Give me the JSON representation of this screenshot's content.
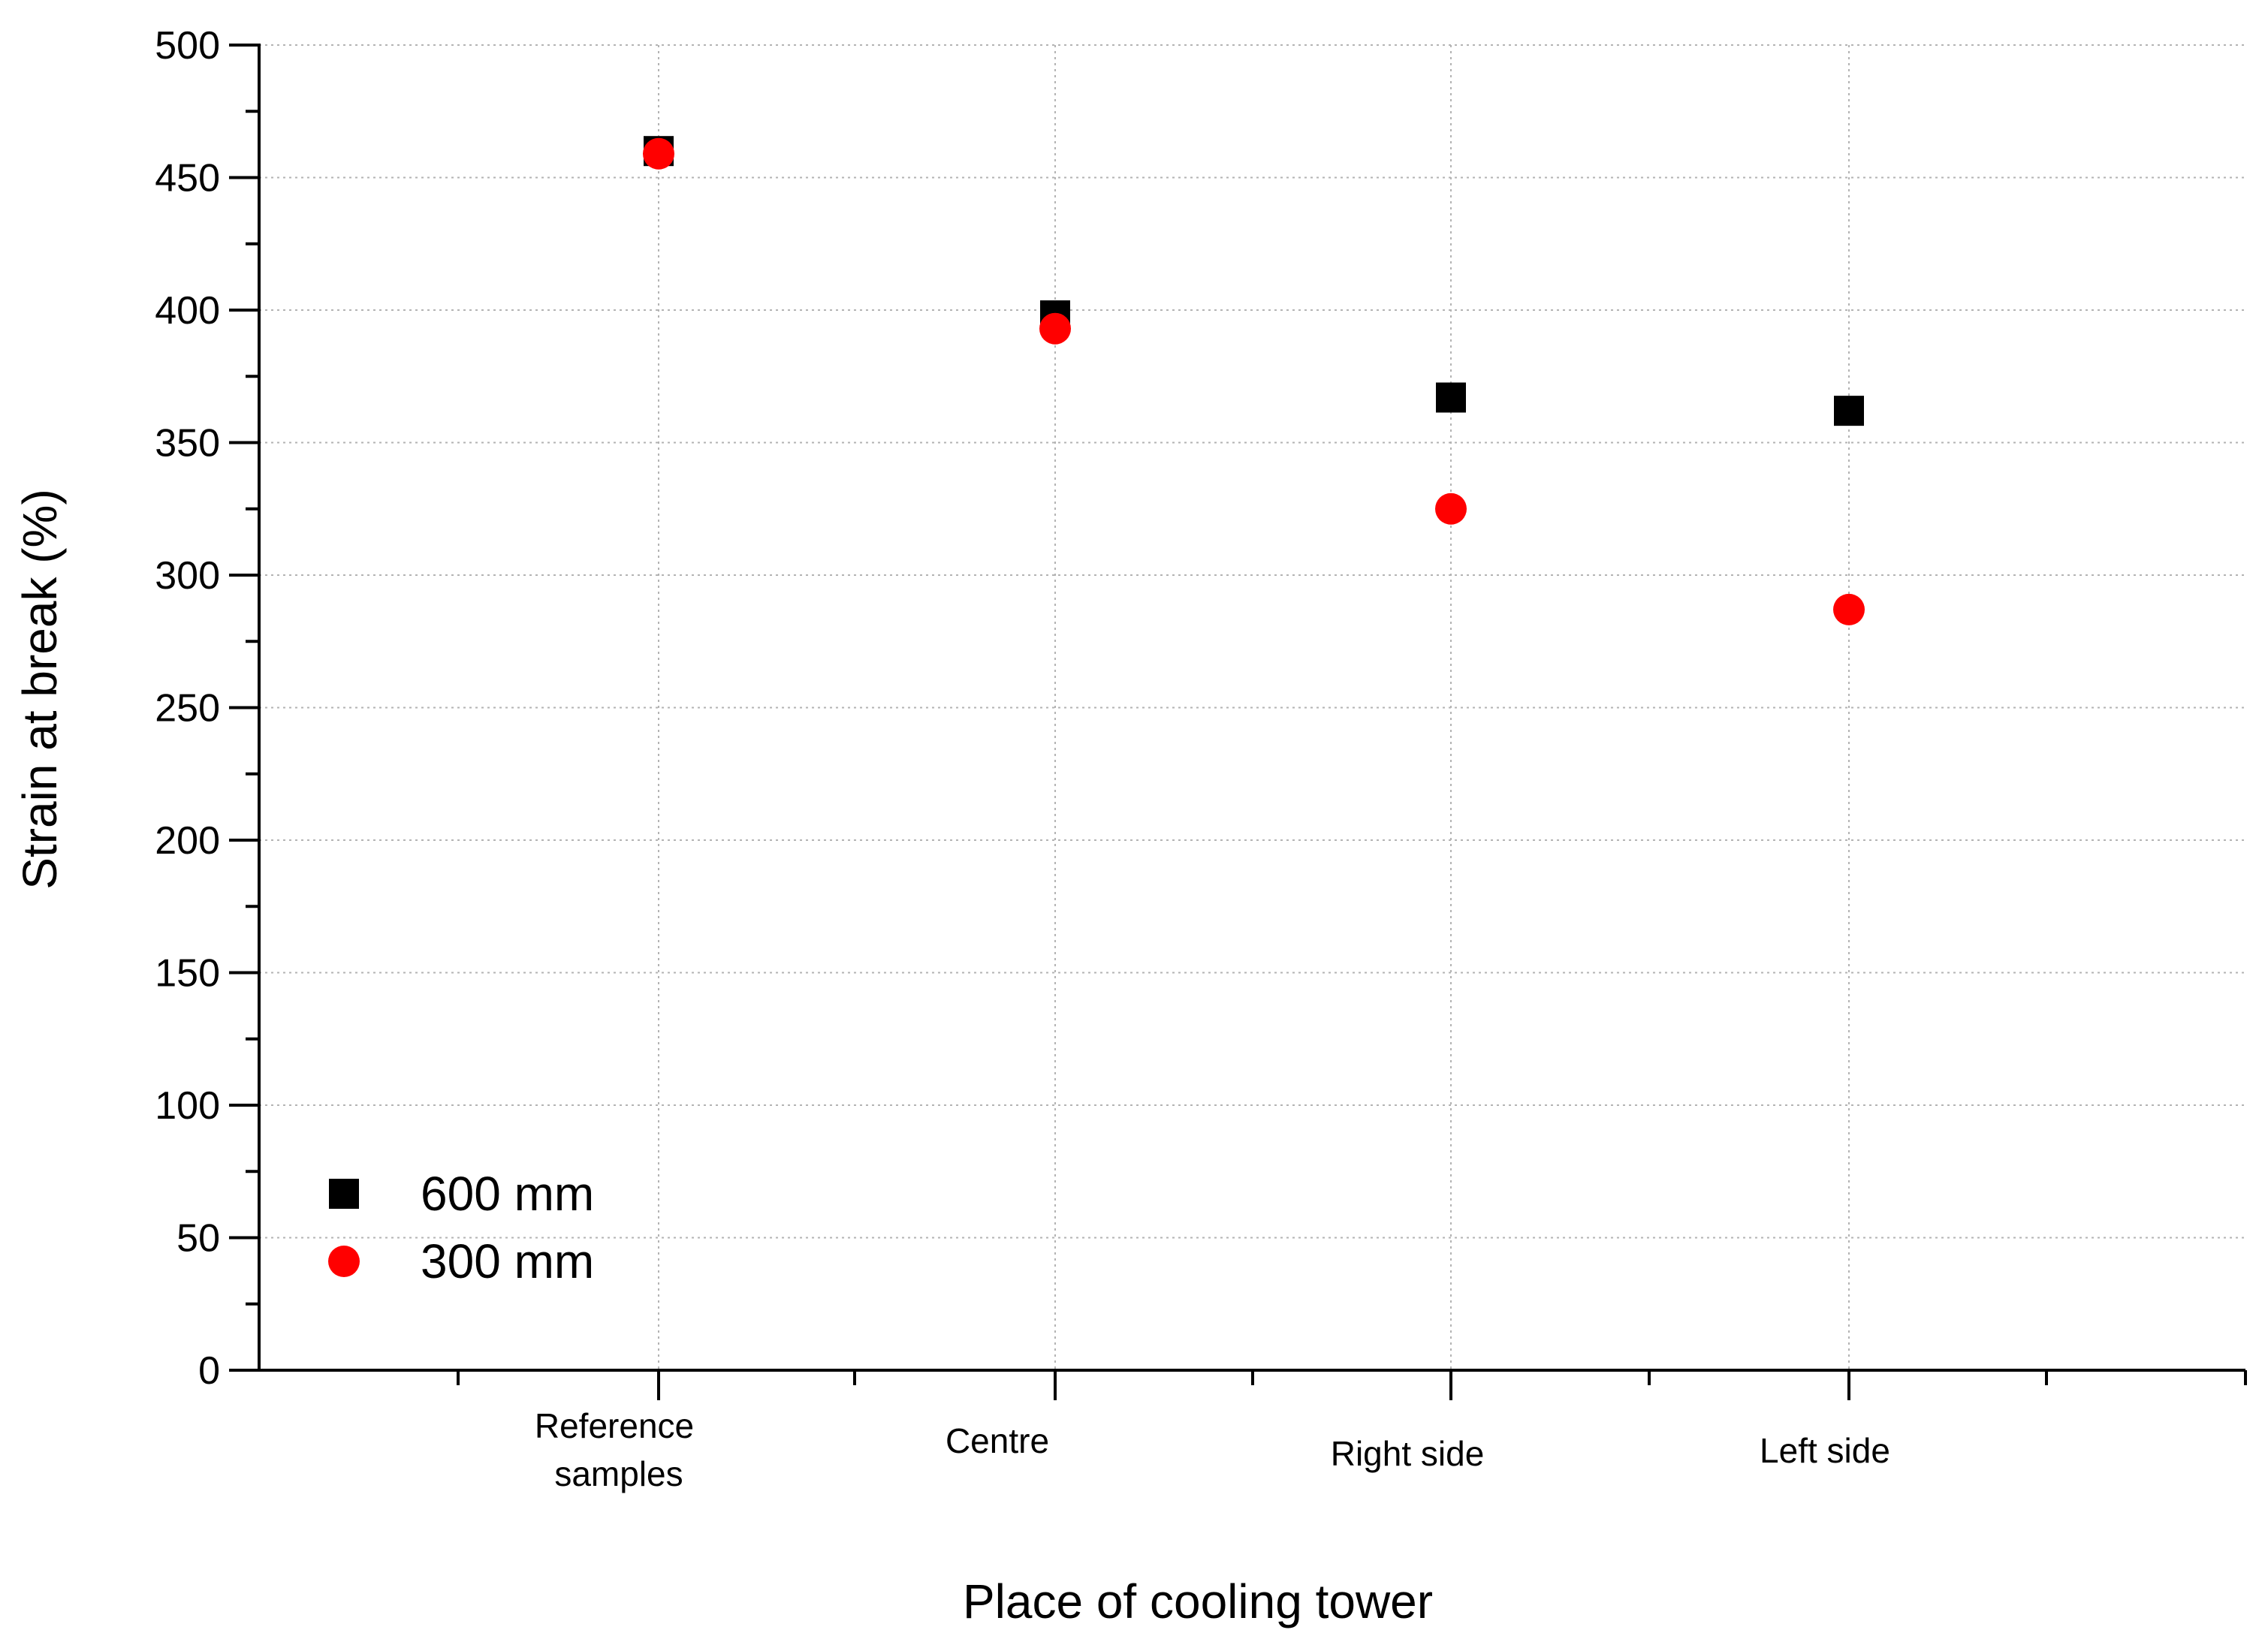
{
  "chart_data": {
    "type": "scatter",
    "title": "",
    "xlabel": "Place of cooling tower",
    "ylabel": "Strain at break (%)",
    "categories": [
      [
        "Reference",
        "samples"
      ],
      [
        "Centre"
      ],
      [
        "Right side"
      ],
      [
        "Left side"
      ]
    ],
    "ylim": [
      0,
      500
    ],
    "yticks": [
      0,
      50,
      100,
      150,
      200,
      250,
      300,
      350,
      400,
      450,
      500
    ],
    "grid": true,
    "legend_position": "bottom-left",
    "series": [
      {
        "name": "600 mm",
        "marker": "square",
        "color": "#000000",
        "values": [
          460,
          398,
          367,
          362
        ]
      },
      {
        "name": "300 mm",
        "marker": "circle",
        "color": "#ff0000",
        "values": [
          459,
          393,
          325,
          287
        ]
      }
    ]
  }
}
